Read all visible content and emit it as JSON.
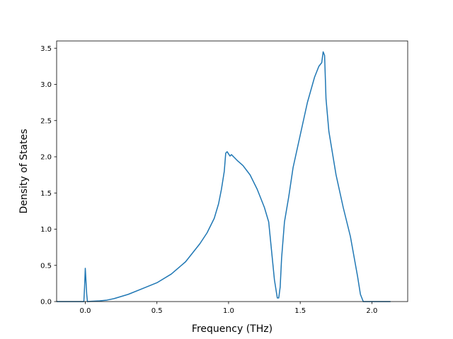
{
  "chart_data": {
    "type": "line",
    "title": "",
    "xlabel": "Frequency (THz)",
    "ylabel": "Density of States",
    "xlim": [
      -0.2,
      2.25
    ],
    "ylim": [
      0.0,
      3.6
    ],
    "grid": false,
    "line_color": "#1f77b4",
    "xticks": [
      {
        "value": 0.0,
        "label": "0.0"
      },
      {
        "value": 0.5,
        "label": "0.5"
      },
      {
        "value": 1.0,
        "label": "1.0"
      },
      {
        "value": 1.5,
        "label": "1.5"
      },
      {
        "value": 2.0,
        "label": "2.0"
      }
    ],
    "yticks": [
      {
        "value": 0.0,
        "label": "0.0"
      },
      {
        "value": 0.5,
        "label": "0.5"
      },
      {
        "value": 1.0,
        "label": "1.0"
      },
      {
        "value": 1.5,
        "label": "1.5"
      },
      {
        "value": 2.0,
        "label": "2.0"
      },
      {
        "value": 2.5,
        "label": "2.5"
      },
      {
        "value": 3.0,
        "label": "3.0"
      },
      {
        "value": 3.5,
        "label": "3.5"
      }
    ],
    "series": [
      {
        "x": [
          -0.2,
          -0.01,
          -0.005,
          0.0,
          0.01,
          0.015,
          0.1,
          0.15,
          0.2,
          0.3,
          0.4,
          0.5,
          0.6,
          0.7,
          0.8,
          0.85,
          0.9,
          0.93,
          0.95,
          0.97,
          0.98,
          0.99,
          1.0,
          1.01,
          1.02,
          1.04,
          1.06,
          1.1,
          1.15,
          1.2,
          1.25,
          1.28,
          1.3,
          1.32,
          1.34,
          1.35,
          1.36,
          1.37,
          1.39,
          1.42,
          1.45,
          1.5,
          1.55,
          1.6,
          1.63,
          1.65,
          1.66,
          1.67,
          1.68,
          1.7,
          1.75,
          1.8,
          1.85,
          1.9,
          1.92,
          1.94,
          1.96,
          2.13
        ],
        "y": [
          0.0,
          0.0,
          0.2,
          0.46,
          0.1,
          0.0,
          0.01,
          0.02,
          0.04,
          0.1,
          0.18,
          0.26,
          0.38,
          0.55,
          0.8,
          0.95,
          1.15,
          1.35,
          1.55,
          1.8,
          2.05,
          2.07,
          2.04,
          2.01,
          2.03,
          1.99,
          1.95,
          1.88,
          1.75,
          1.55,
          1.3,
          1.1,
          0.7,
          0.3,
          0.05,
          0.05,
          0.2,
          0.6,
          1.1,
          1.45,
          1.85,
          2.3,
          2.75,
          3.1,
          3.25,
          3.3,
          3.45,
          3.4,
          2.8,
          2.35,
          1.75,
          1.3,
          0.9,
          0.35,
          0.1,
          0.0,
          0.0,
          0.0
        ]
      }
    ]
  }
}
